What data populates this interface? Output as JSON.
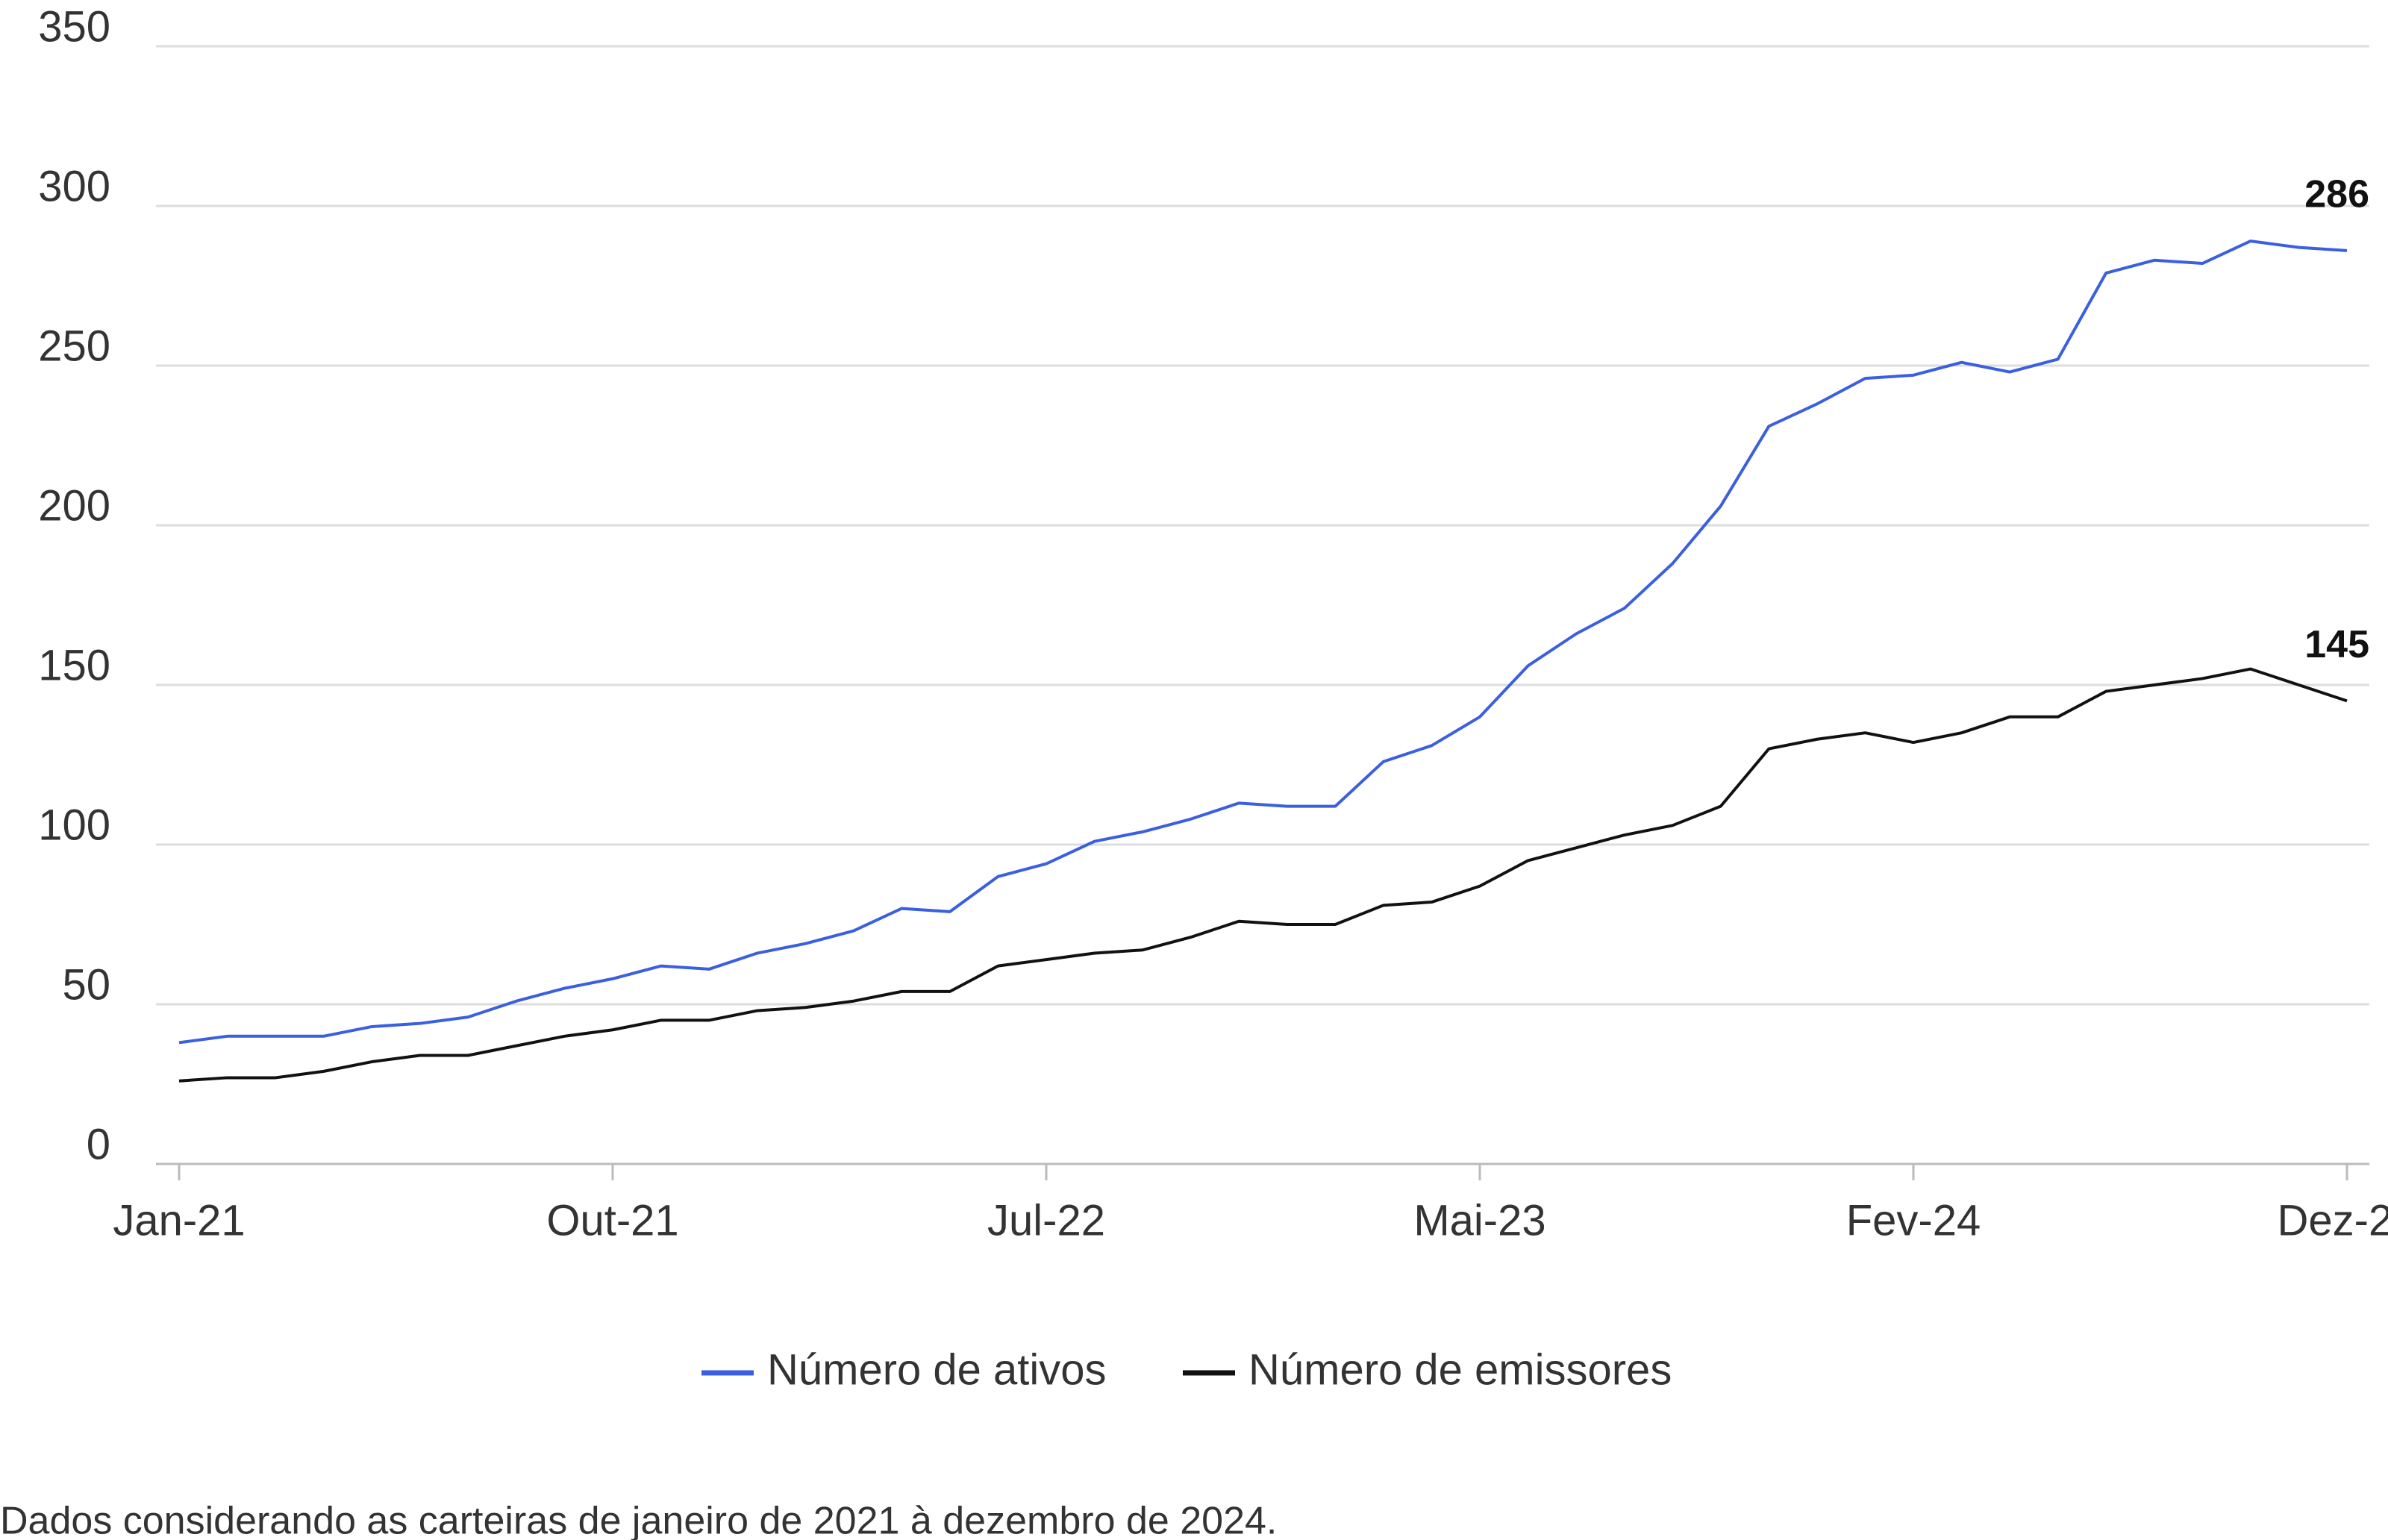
{
  "chart_data": {
    "type": "line",
    "categories": [
      "Jan-21",
      null,
      null,
      null,
      null,
      null,
      null,
      null,
      null,
      "Out-21",
      null,
      null,
      null,
      null,
      null,
      null,
      null,
      null,
      "Jul-22",
      null,
      null,
      null,
      null,
      null,
      null,
      null,
      null,
      "Mai-23",
      null,
      null,
      null,
      null,
      null,
      null,
      null,
      null,
      "Fev-24",
      null,
      null,
      null,
      null,
      null,
      null,
      null,
      null,
      "Dez-24"
    ],
    "series": [
      {
        "name": "Número de ativos",
        "color": "#3a5fe0",
        "values": [
          38,
          40,
          40,
          40,
          43,
          44,
          46,
          51,
          55,
          58,
          62,
          61,
          66,
          69,
          73,
          80,
          79,
          90,
          94,
          101,
          104,
          108,
          113,
          112,
          112,
          126,
          131,
          140,
          156,
          166,
          174,
          188,
          206,
          231,
          238,
          246,
          247,
          251,
          248,
          252,
          279,
          283,
          282,
          289,
          287,
          286
        ]
      },
      {
        "name": "Número de emissores",
        "color": "#111111",
        "values": [
          26,
          27,
          27,
          29,
          32,
          34,
          34,
          37,
          40,
          42,
          45,
          45,
          48,
          49,
          51,
          54,
          54,
          62,
          64,
          66,
          67,
          71,
          76,
          75,
          75,
          81,
          82,
          87,
          95,
          99,
          103,
          106,
          112,
          130,
          133,
          135,
          132,
          135,
          140,
          140,
          148,
          150,
          152,
          155,
          150,
          145
        ]
      }
    ],
    "ylim": [
      0,
      350
    ],
    "yticks": [
      0,
      50,
      100,
      150,
      200,
      250,
      300,
      350
    ],
    "grid": true,
    "note": "Dados considerando as carteiras de janeiro de 2021 à dezembro de 2024."
  }
}
